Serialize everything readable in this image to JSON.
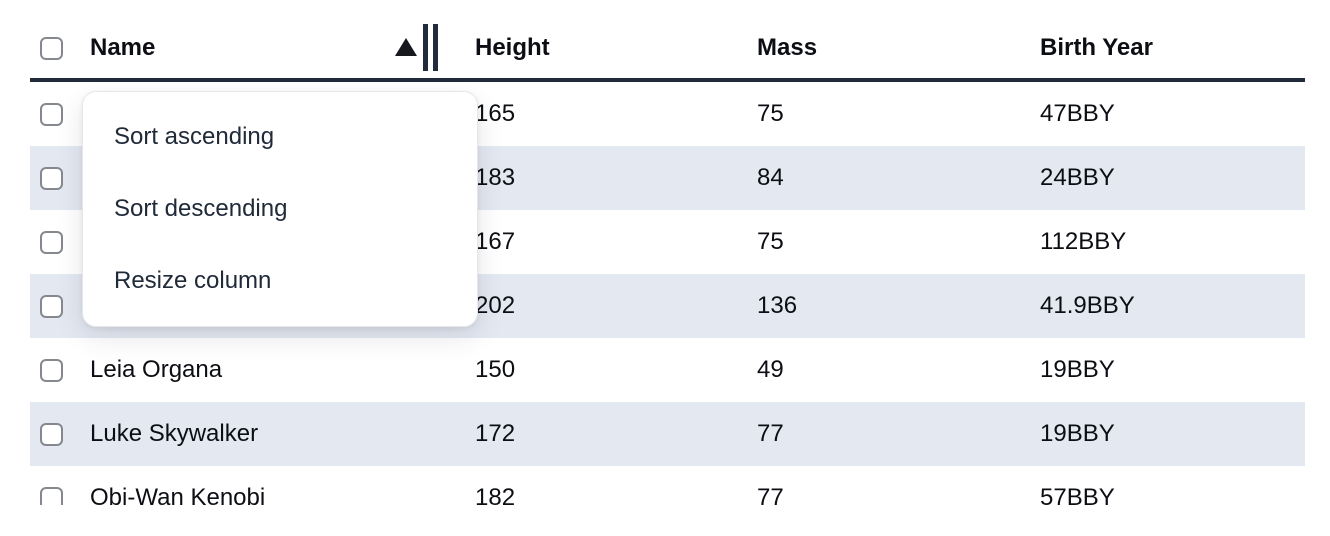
{
  "table": {
    "columns": [
      "Name",
      "Height",
      "Mass",
      "Birth Year"
    ],
    "sort": {
      "column": "Name",
      "direction": "ascending"
    },
    "select_all_checked": false,
    "rows": [
      {
        "name": "",
        "height": "165",
        "mass": "75",
        "birth_year": "47BBY",
        "selected": false
      },
      {
        "name": "",
        "height": "183",
        "mass": "84",
        "birth_year": "24BBY",
        "selected": false
      },
      {
        "name": "",
        "height": "167",
        "mass": "75",
        "birth_year": "112BBY",
        "selected": false
      },
      {
        "name": "",
        "height": "202",
        "mass": "136",
        "birth_year": "41.9BBY",
        "selected": false
      },
      {
        "name": "Leia Organa",
        "height": "150",
        "mass": "49",
        "birth_year": "19BBY",
        "selected": false
      },
      {
        "name": "Luke Skywalker",
        "height": "172",
        "mass": "77",
        "birth_year": "19BBY",
        "selected": false
      },
      {
        "name": "Obi-Wan Kenobi",
        "height": "182",
        "mass": "77",
        "birth_year": "57BBY",
        "selected": false
      }
    ]
  },
  "menu": {
    "items": [
      "Sort ascending",
      "Sort descending",
      "Resize column"
    ]
  },
  "icons": {
    "sort_indicator_icon": "triangle-up-filled",
    "resize_handle_icon": "double-vertical-bars",
    "checkbox_icon": "unchecked-rounded-square"
  },
  "colors": {
    "row_stripe": "#e3e8f1",
    "header_border": "#212b3c",
    "menu_text": "#202a39",
    "cell_text": "#0c0e13",
    "checkbox_border": "#85898f"
  }
}
